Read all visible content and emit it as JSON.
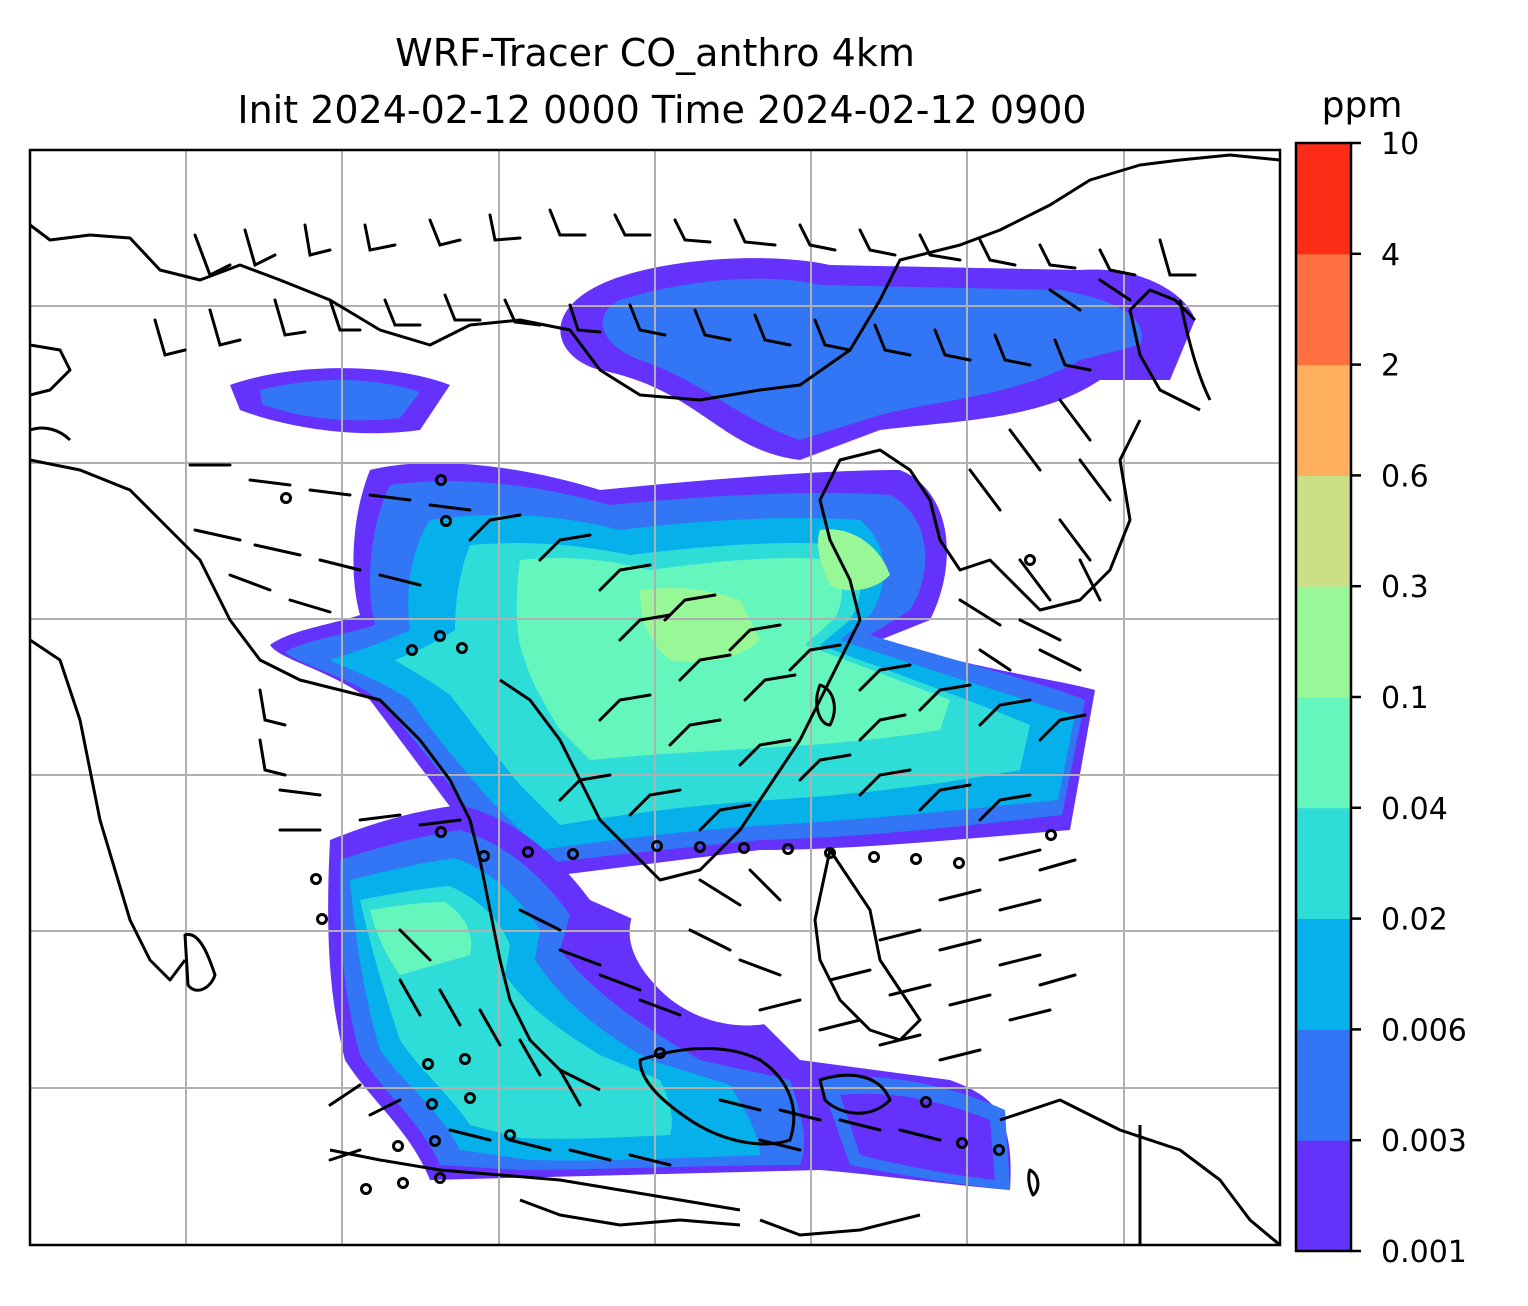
{
  "title_line1": "WRF-Tracer CO_anthro 4km",
  "title_line2": "Init 2024-02-12 0000 Time 2024-02-12 0900",
  "colorbar": {
    "unit": "ppm",
    "ticks": [
      "0.001",
      "0.003",
      "0.006",
      "0.02",
      "0.04",
      "0.1",
      "0.3",
      "0.6",
      "2",
      "4",
      "10"
    ],
    "colors": [
      "#6432fa",
      "#3276f5",
      "#06b0ea",
      "#2edcd8",
      "#64f6bc",
      "#98f898",
      "#ccdf86",
      "#feaf5e",
      "#fe7040",
      "#fc2c17"
    ]
  },
  "map": {
    "variable": "CO_anthro",
    "overlay": "wind barbs",
    "gridlines": true
  }
}
